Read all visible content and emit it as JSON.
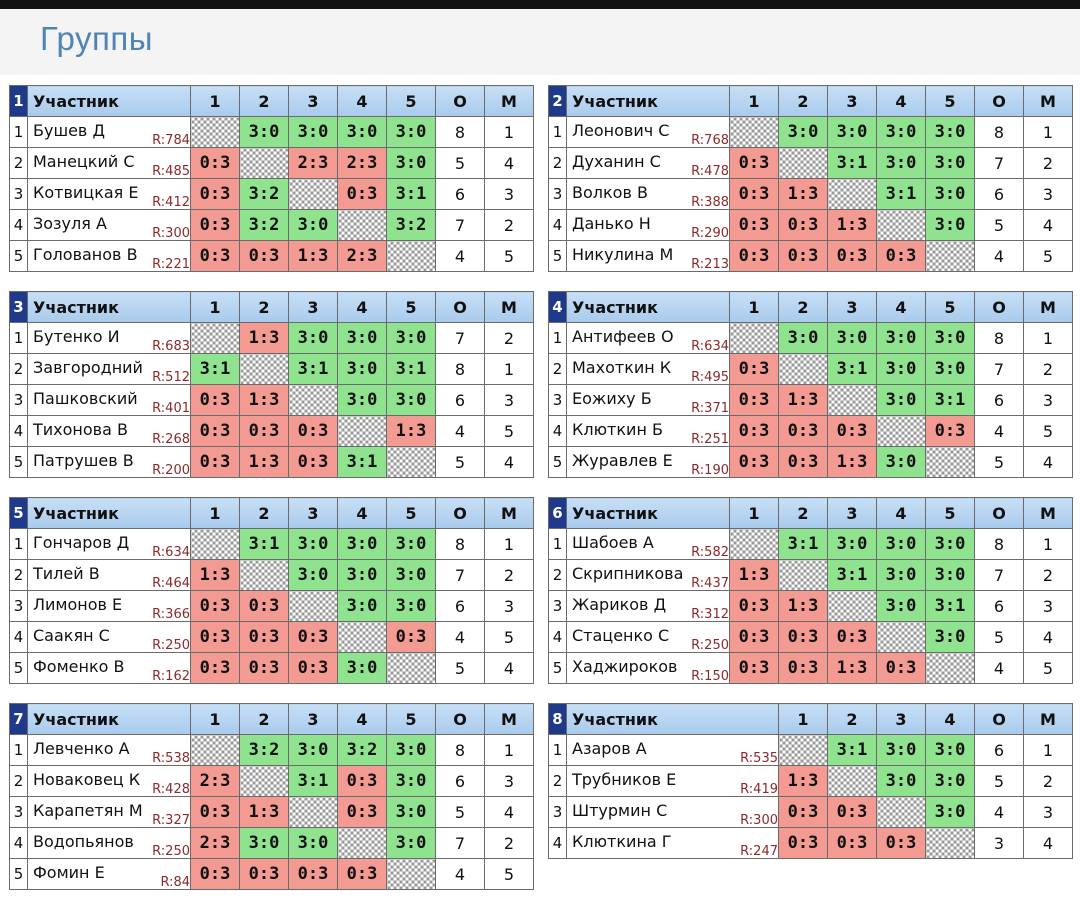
{
  "page": {
    "title": "Группы"
  },
  "headers": {
    "participant": "Участник",
    "points": "О",
    "place": "М"
  },
  "groups": [
    {
      "id": "1",
      "players": [
        {
          "num": "1",
          "name": "Бушев Д",
          "rating": "R:784",
          "results": [
            "",
            "3:0",
            "3:0",
            "3:0",
            "3:0"
          ],
          "points": "8",
          "place": "1"
        },
        {
          "num": "2",
          "name": "Манецкий С",
          "rating": "R:485",
          "results": [
            "0:3",
            "",
            "2:3",
            "2:3",
            "3:0"
          ],
          "points": "5",
          "place": "4"
        },
        {
          "num": "3",
          "name": "Котвицкая Е",
          "rating": "R:412",
          "results": [
            "0:3",
            "3:2",
            "",
            "0:3",
            "3:1"
          ],
          "points": "6",
          "place": "3"
        },
        {
          "num": "4",
          "name": "Зозуля А",
          "rating": "R:300",
          "results": [
            "0:3",
            "3:2",
            "3:0",
            "",
            "3:2"
          ],
          "points": "7",
          "place": "2"
        },
        {
          "num": "5",
          "name": "Голованов В",
          "rating": "R:221",
          "results": [
            "0:3",
            "0:3",
            "1:3",
            "2:3",
            ""
          ],
          "points": "4",
          "place": "5"
        }
      ]
    },
    {
      "id": "2",
      "players": [
        {
          "num": "1",
          "name": "Леонович С",
          "rating": "R:768",
          "results": [
            "",
            "3:0",
            "3:0",
            "3:0",
            "3:0"
          ],
          "points": "8",
          "place": "1"
        },
        {
          "num": "2",
          "name": "Духанин С",
          "rating": "R:478",
          "results": [
            "0:3",
            "",
            "3:1",
            "3:0",
            "3:0"
          ],
          "points": "7",
          "place": "2"
        },
        {
          "num": "3",
          "name": "Волков В",
          "rating": "R:388",
          "results": [
            "0:3",
            "1:3",
            "",
            "3:1",
            "3:0"
          ],
          "points": "6",
          "place": "3"
        },
        {
          "num": "4",
          "name": "Данько Н",
          "rating": "R:290",
          "results": [
            "0:3",
            "0:3",
            "1:3",
            "",
            "3:0"
          ],
          "points": "5",
          "place": "4"
        },
        {
          "num": "5",
          "name": "Никулина М",
          "rating": "R:213",
          "results": [
            "0:3",
            "0:3",
            "0:3",
            "0:3",
            ""
          ],
          "points": "4",
          "place": "5"
        }
      ]
    },
    {
      "id": "3",
      "players": [
        {
          "num": "1",
          "name": "Бутенко И",
          "rating": "R:683",
          "results": [
            "",
            "1:3",
            "3:0",
            "3:0",
            "3:0"
          ],
          "points": "7",
          "place": "2"
        },
        {
          "num": "2",
          "name": "Завгородний",
          "rating": "R:512",
          "results": [
            "3:1",
            "",
            "3:1",
            "3:0",
            "3:1"
          ],
          "points": "8",
          "place": "1"
        },
        {
          "num": "3",
          "name": "Пашковский",
          "rating": "R:401",
          "results": [
            "0:3",
            "1:3",
            "",
            "3:0",
            "3:0"
          ],
          "points": "6",
          "place": "3"
        },
        {
          "num": "4",
          "name": "Тихонова В",
          "rating": "R:268",
          "results": [
            "0:3",
            "0:3",
            "0:3",
            "",
            "1:3"
          ],
          "points": "4",
          "place": "5"
        },
        {
          "num": "5",
          "name": "Патрушев В",
          "rating": "R:200",
          "results": [
            "0:3",
            "1:3",
            "0:3",
            "3:1",
            ""
          ],
          "points": "5",
          "place": "4"
        }
      ]
    },
    {
      "id": "4",
      "players": [
        {
          "num": "1",
          "name": "Антифеев О",
          "rating": "R:634",
          "results": [
            "",
            "3:0",
            "3:0",
            "3:0",
            "3:0"
          ],
          "points": "8",
          "place": "1"
        },
        {
          "num": "2",
          "name": "Махоткин К",
          "rating": "R:495",
          "results": [
            "0:3",
            "",
            "3:1",
            "3:0",
            "3:0"
          ],
          "points": "7",
          "place": "2"
        },
        {
          "num": "3",
          "name": "Еожиху Б",
          "rating": "R:371",
          "results": [
            "0:3",
            "1:3",
            "",
            "3:0",
            "3:1"
          ],
          "points": "6",
          "place": "3"
        },
        {
          "num": "4",
          "name": "Клюткин Б",
          "rating": "R:251",
          "results": [
            "0:3",
            "0:3",
            "0:3",
            "",
            "0:3"
          ],
          "points": "4",
          "place": "5"
        },
        {
          "num": "5",
          "name": "Журавлев Е",
          "rating": "R:190",
          "results": [
            "0:3",
            "0:3",
            "1:3",
            "3:0",
            ""
          ],
          "points": "5",
          "place": "4"
        }
      ]
    },
    {
      "id": "5",
      "players": [
        {
          "num": "1",
          "name": "Гончаров Д",
          "rating": "R:634",
          "results": [
            "",
            "3:1",
            "3:0",
            "3:0",
            "3:0"
          ],
          "points": "8",
          "place": "1"
        },
        {
          "num": "2",
          "name": "Тилей В",
          "rating": "R:464",
          "results": [
            "1:3",
            "",
            "3:0",
            "3:0",
            "3:0"
          ],
          "points": "7",
          "place": "2"
        },
        {
          "num": "3",
          "name": "Лимонов Е",
          "rating": "R:366",
          "results": [
            "0:3",
            "0:3",
            "",
            "3:0",
            "3:0"
          ],
          "points": "6",
          "place": "3"
        },
        {
          "num": "4",
          "name": "Саакян С",
          "rating": "R:250",
          "results": [
            "0:3",
            "0:3",
            "0:3",
            "",
            "0:3"
          ],
          "points": "4",
          "place": "5"
        },
        {
          "num": "5",
          "name": "Фоменко В",
          "rating": "R:162",
          "results": [
            "0:3",
            "0:3",
            "0:3",
            "3:0",
            ""
          ],
          "points": "5",
          "place": "4"
        }
      ]
    },
    {
      "id": "6",
      "players": [
        {
          "num": "1",
          "name": "Шабоев А",
          "rating": "R:582",
          "results": [
            "",
            "3:1",
            "3:0",
            "3:0",
            "3:0"
          ],
          "points": "8",
          "place": "1"
        },
        {
          "num": "2",
          "name": "Скрипникова",
          "rating": "R:437",
          "results": [
            "1:3",
            "",
            "3:1",
            "3:0",
            "3:0"
          ],
          "points": "7",
          "place": "2"
        },
        {
          "num": "3",
          "name": "Жариков Д",
          "rating": "R:312",
          "results": [
            "0:3",
            "1:3",
            "",
            "3:0",
            "3:1"
          ],
          "points": "6",
          "place": "3"
        },
        {
          "num": "4",
          "name": "Стаценко С",
          "rating": "R:250",
          "results": [
            "0:3",
            "0:3",
            "0:3",
            "",
            "3:0"
          ],
          "points": "5",
          "place": "4"
        },
        {
          "num": "5",
          "name": "Хаджироков",
          "rating": "R:150",
          "results": [
            "0:3",
            "0:3",
            "1:3",
            "0:3",
            ""
          ],
          "points": "4",
          "place": "5"
        }
      ]
    },
    {
      "id": "7",
      "players": [
        {
          "num": "1",
          "name": "Левченко А",
          "rating": "R:538",
          "results": [
            "",
            "3:2",
            "3:0",
            "3:2",
            "3:0"
          ],
          "points": "8",
          "place": "1"
        },
        {
          "num": "2",
          "name": "Новаковец К",
          "rating": "R:428",
          "results": [
            "2:3",
            "",
            "3:1",
            "0:3",
            "3:0"
          ],
          "points": "6",
          "place": "3"
        },
        {
          "num": "3",
          "name": "Карапетян М",
          "rating": "R:327",
          "results": [
            "0:3",
            "1:3",
            "",
            "0:3",
            "3:0"
          ],
          "points": "5",
          "place": "4"
        },
        {
          "num": "4",
          "name": "Водопьянов",
          "rating": "R:250",
          "results": [
            "2:3",
            "3:0",
            "3:0",
            "",
            "3:0"
          ],
          "points": "7",
          "place": "2"
        },
        {
          "num": "5",
          "name": "Фомин Е",
          "rating": "R:84",
          "results": [
            "0:3",
            "0:3",
            "0:3",
            "0:3",
            ""
          ],
          "points": "4",
          "place": "5"
        }
      ]
    },
    {
      "id": "8",
      "players": [
        {
          "num": "1",
          "name": "Азаров А",
          "rating": "R:535",
          "results": [
            "",
            "3:1",
            "3:0",
            "3:0"
          ],
          "points": "6",
          "place": "1"
        },
        {
          "num": "2",
          "name": "Трубников Е",
          "rating": "R:419",
          "results": [
            "1:3",
            "",
            "3:0",
            "3:0"
          ],
          "points": "5",
          "place": "2"
        },
        {
          "num": "3",
          "name": "Штурмин С",
          "rating": "R:300",
          "results": [
            "0:3",
            "0:3",
            "",
            "3:0"
          ],
          "points": "4",
          "place": "3"
        },
        {
          "num": "4",
          "name": "Клюткина Г",
          "rating": "R:247",
          "results": [
            "0:3",
            "0:3",
            "0:3",
            ""
          ],
          "points": "3",
          "place": "4"
        }
      ]
    }
  ]
}
